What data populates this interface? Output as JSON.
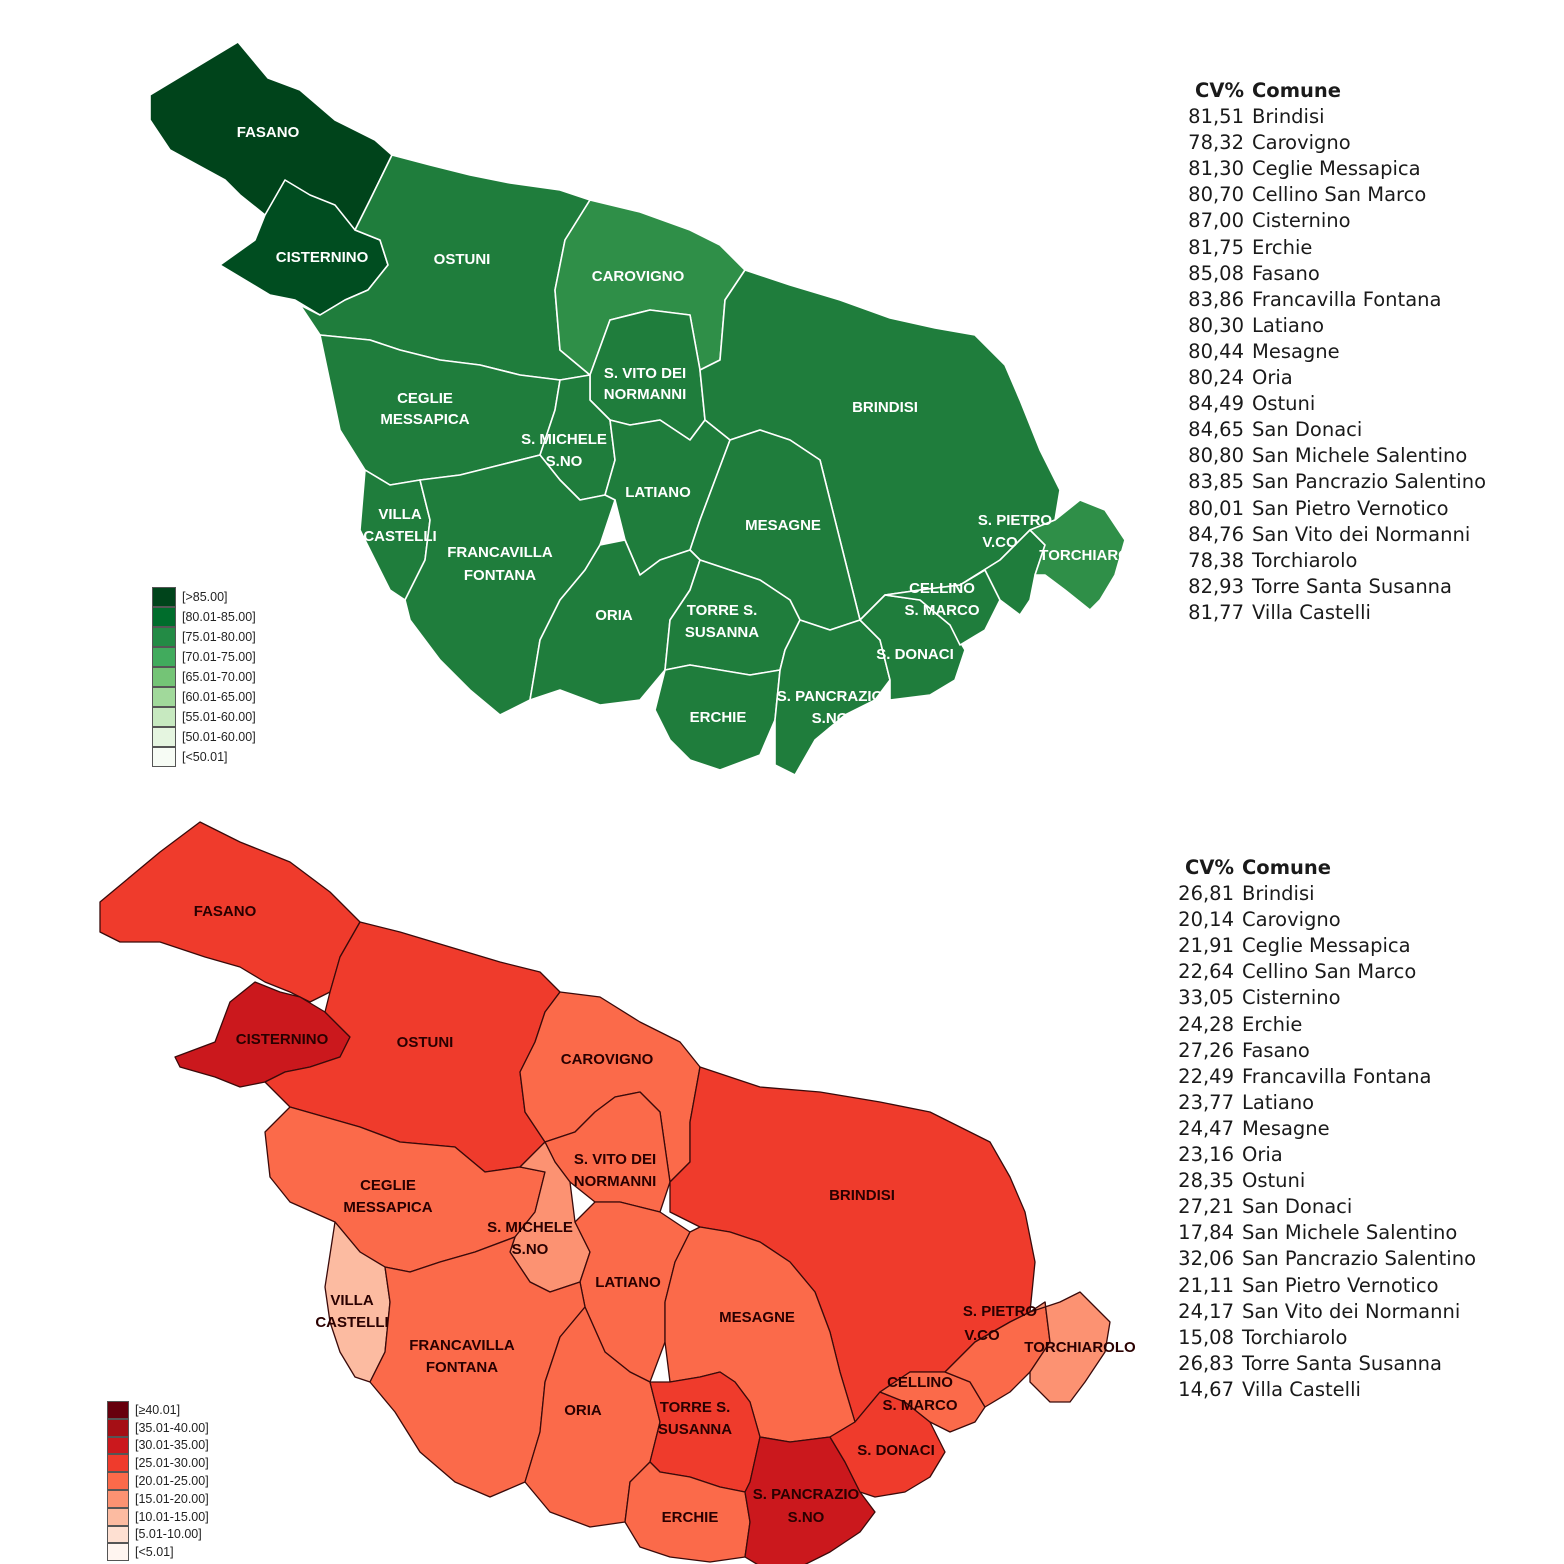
{
  "green_map": {
    "legend": [
      {
        "label": "[>85.00]",
        "color": "#00441b"
      },
      {
        "label": "[80.01-85.00]",
        "color": "#006d2c"
      },
      {
        "label": "[75.01-80.00]",
        "color": "#238b45"
      },
      {
        "label": "[70.01-75.00]",
        "color": "#41ab5d"
      },
      {
        "label": "[65.01-70.00]",
        "color": "#74c476"
      },
      {
        "label": "[60.01-65.00]",
        "color": "#a1d99b"
      },
      {
        "label": "[55.01-60.00]",
        "color": "#c7e9c0"
      },
      {
        "label": "[50.01-60.00]",
        "color": "#e5f5e0"
      },
      {
        "label": "[<50.01]",
        "color": "#f7fcf5"
      }
    ],
    "labels": [
      "FASANO",
      "CISTERNINO",
      "OSTUNI",
      "CAROVIGNO",
      "S. VITO DEI",
      "NORMANNI",
      "CEGLIE",
      "MESSAPICA",
      "S. MICHELE",
      "S.NO",
      "BRINDISI",
      "LATIANO",
      "VILLA",
      "CASTELLI",
      "FRANCAVILLA",
      "FONTANA",
      "MESAGNE",
      "S. PIETRO",
      "V.CO",
      "TORCHIAROLO",
      "CELLINO",
      "S. MARCO",
      "ORIA",
      "TORRE S.",
      "SUSANNA",
      "S. DONACI",
      "S. PANCRAZIO",
      "S.NO",
      "ERCHIE"
    ],
    "table": {
      "header": {
        "cv": "CV%",
        "comune": "Comune"
      },
      "rows": [
        {
          "cv": "81,51",
          "comune": "Brindisi"
        },
        {
          "cv": "78,32",
          "comune": "Carovigno"
        },
        {
          "cv": "81,30",
          "comune": "Ceglie Messapica"
        },
        {
          "cv": "80,70",
          "comune": "Cellino San Marco"
        },
        {
          "cv": "87,00",
          "comune": "Cisternino"
        },
        {
          "cv": "81,75",
          "comune": "Erchie"
        },
        {
          "cv": "85,08",
          "comune": "Fasano"
        },
        {
          "cv": "83,86",
          "comune": "Francavilla Fontana"
        },
        {
          "cv": "80,30",
          "comune": "Latiano"
        },
        {
          "cv": "80,44",
          "comune": "Mesagne"
        },
        {
          "cv": "80,24",
          "comune": "Oria"
        },
        {
          "cv": "84,49",
          "comune": "Ostuni"
        },
        {
          "cv": "84,65",
          "comune": "San Donaci"
        },
        {
          "cv": "80,80",
          "comune": "San Michele Salentino"
        },
        {
          "cv": "83,85",
          "comune": "San Pancrazio Salentino"
        },
        {
          "cv": "80,01",
          "comune": "San Pietro Vernotico"
        },
        {
          "cv": "84,76",
          "comune": "San Vito dei Normanni"
        },
        {
          "cv": "78,38",
          "comune": "Torchiarolo"
        },
        {
          "cv": "82,93",
          "comune": "Torre Santa Susanna"
        },
        {
          "cv": "81,77",
          "comune": "Villa Castelli"
        }
      ]
    }
  },
  "red_map": {
    "legend": [
      {
        "label": "[≥40.01]",
        "color": "#67000d"
      },
      {
        "label": "[35.01-40.00]",
        "color": "#a50f15"
      },
      {
        "label": "[30.01-35.00]",
        "color": "#cb181d"
      },
      {
        "label": "[25.01-30.00]",
        "color": "#ef3b2c"
      },
      {
        "label": "[20.01-25.00]",
        "color": "#fb6a4a"
      },
      {
        "label": "[15.01-20.00]",
        "color": "#fc9272"
      },
      {
        "label": "[10.01-15.00]",
        "color": "#fcbba1"
      },
      {
        "label": "[5.01-10.00]",
        "color": "#fee0d2"
      },
      {
        "label": "[<5.01]",
        "color": "#fff5f0"
      }
    ],
    "labels": [
      "FASANO",
      "CISTERNINO",
      "OSTUNI",
      "CAROVIGNO",
      "S. VITO DEI",
      "NORMANNI",
      "CEGLIE",
      "MESSAPICA",
      "S. MICHELE",
      "S.NO",
      "BRINDISI",
      "LATIANO",
      "VILLA",
      "CASTELLI",
      "FRANCAVILLA",
      "FONTANA",
      "MESAGNE",
      "S. PIETRO",
      "V.CO",
      "TORCHIAROLO",
      "CELLINO",
      "S. MARCO",
      "ORIA",
      "TORRE S.",
      "SUSANNA",
      "S. DONACI",
      "S. PANCRAZIO",
      "S.NO",
      "ERCHIE"
    ],
    "table": {
      "header": {
        "cv": "CV%",
        "comune": "Comune"
      },
      "rows": [
        {
          "cv": "26,81",
          "comune": "Brindisi"
        },
        {
          "cv": "20,14",
          "comune": "Carovigno"
        },
        {
          "cv": "21,91",
          "comune": "Ceglie Messapica"
        },
        {
          "cv": "22,64",
          "comune": "Cellino San Marco"
        },
        {
          "cv": "33,05",
          "comune": "Cisternino"
        },
        {
          "cv": "24,28",
          "comune": "Erchie"
        },
        {
          "cv": "27,26",
          "comune": "Fasano"
        },
        {
          "cv": "22,49",
          "comune": "Francavilla Fontana"
        },
        {
          "cv": "23,77",
          "comune": "Latiano"
        },
        {
          "cv": "24,47",
          "comune": "Mesagne"
        },
        {
          "cv": "23,16",
          "comune": "Oria"
        },
        {
          "cv": "28,35",
          "comune": "Ostuni"
        },
        {
          "cv": "27,21",
          "comune": "San Donaci"
        },
        {
          "cv": "17,84",
          "comune": "San Michele Salentino"
        },
        {
          "cv": "32,06",
          "comune": "San Pancrazio Salentino"
        },
        {
          "cv": "21,11",
          "comune": "San Pietro Vernotico"
        },
        {
          "cv": "24,17",
          "comune": "San Vito dei Normanni"
        },
        {
          "cv": "15,08",
          "comune": "Torchiarolo"
        },
        {
          "cv": "26,83",
          "comune": "Torre Santa Susanna"
        },
        {
          "cv": "14,67",
          "comune": "Villa Castelli"
        }
      ]
    }
  }
}
